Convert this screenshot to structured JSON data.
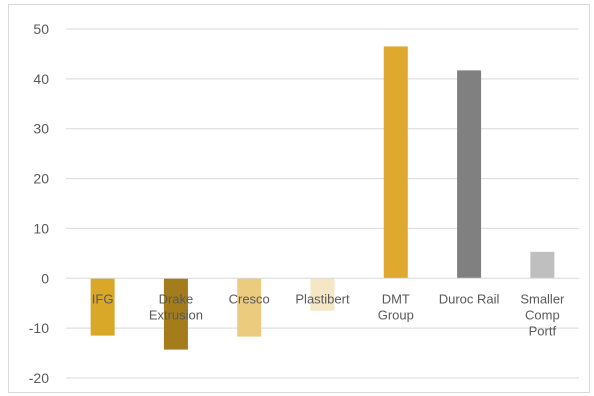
{
  "chart_data": {
    "type": "bar",
    "categories": [
      [
        "IFG"
      ],
      [
        "Drake",
        "Extrusion"
      ],
      [
        "Cresco"
      ],
      [
        "Plastibert"
      ],
      [
        "DMT",
        "Group"
      ],
      [
        "Duroc Rail"
      ],
      [
        "Smaller",
        "Comp",
        "Portf"
      ]
    ],
    "values": [
      -11.5,
      -14.3,
      -11.7,
      -6.5,
      46.5,
      41.7,
      5.3
    ],
    "colors": [
      "#D9A828",
      "#A57C1C",
      "#EBCB7E",
      "#F5E7C6",
      "#DEA92E",
      "#808080",
      "#BFBFBF"
    ],
    "ylim": [
      -20,
      50
    ],
    "yticks": [
      -20,
      -10,
      0,
      10,
      20,
      30,
      40,
      50
    ],
    "grid": true,
    "title": "",
    "xlabel": "",
    "ylabel": ""
  }
}
